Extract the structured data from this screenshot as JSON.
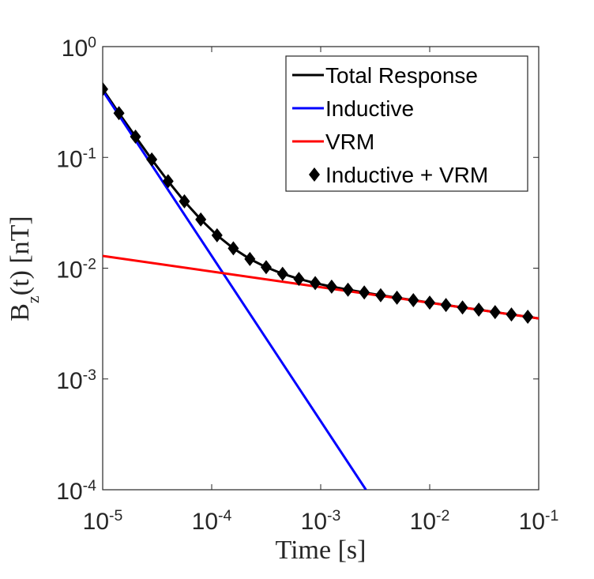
{
  "chart_data": {
    "type": "line",
    "xlabel": "Time [s]",
    "ylabel": "B_z(t) [nT]",
    "xscale": "log",
    "yscale": "log",
    "xlim": [
      1e-05,
      0.1
    ],
    "ylim": [
      0.0001,
      1
    ],
    "xticks": [
      {
        "value": 1e-05,
        "label": "10^-5"
      },
      {
        "value": 0.0001,
        "label": "10^-4"
      },
      {
        "value": 0.001,
        "label": "10^-3"
      },
      {
        "value": 0.01,
        "label": "10^-2"
      },
      {
        "value": 0.1,
        "label": "10^-1"
      }
    ],
    "yticks": [
      {
        "value": 0.0001,
        "label": "10^-4"
      },
      {
        "value": 0.001,
        "label": "10^-3"
      },
      {
        "value": 0.01,
        "label": "10^-2"
      },
      {
        "value": 0.1,
        "label": "10^-1"
      },
      {
        "value": 1,
        "label": "10^0"
      }
    ],
    "grid": false,
    "legend": "upper right",
    "series": [
      {
        "name": "Total Response",
        "color": "#000000",
        "style": "line",
        "x": [
          1e-05,
          1.41e-05,
          2e-05,
          2.82e-05,
          3.98e-05,
          5.62e-05,
          7.94e-05,
          0.000112,
          0.000158,
          0.000224,
          0.000316,
          0.000447,
          0.000631,
          0.000891,
          0.00126,
          0.00178,
          0.00251,
          0.00355,
          0.00501,
          0.00708,
          0.01,
          0.0141,
          0.02,
          0.0282,
          0.0398,
          0.0562,
          0.0794,
          0.1
        ],
        "values": [
          0.413,
          0.251,
          0.154,
          0.0957,
          0.061,
          0.0401,
          0.0275,
          0.0198,
          0.0151,
          0.0121,
          0.0102,
          0.0089,
          0.008,
          0.00733,
          0.00681,
          0.00639,
          0.00603,
          0.0057,
          0.00541,
          0.00514,
          0.00489,
          0.00465,
          0.00442,
          0.00422,
          0.00401,
          0.00382,
          0.00364,
          0.00352
        ]
      },
      {
        "name": "Inductive",
        "color": "#0000ff",
        "style": "line",
        "x": [
          1e-05,
          0.0026
        ],
        "values": [
          0.4,
          0.0001
        ]
      },
      {
        "name": "VRM",
        "color": "#ff0000",
        "style": "line",
        "x": [
          1e-05,
          0.1
        ],
        "values": [
          0.0129,
          0.00352
        ]
      },
      {
        "name": "Inductive + VRM",
        "color": "#000000",
        "style": "diamond",
        "x": [
          1e-05,
          1.41e-05,
          2e-05,
          2.82e-05,
          3.98e-05,
          5.62e-05,
          7.94e-05,
          0.000112,
          0.000158,
          0.000224,
          0.000316,
          0.000447,
          0.000631,
          0.000891,
          0.00126,
          0.00178,
          0.00251,
          0.00355,
          0.00501,
          0.00708,
          0.01,
          0.0141,
          0.02,
          0.0282,
          0.0398,
          0.0562,
          0.0794
        ],
        "values": [
          0.413,
          0.251,
          0.154,
          0.0957,
          0.061,
          0.0401,
          0.0275,
          0.0198,
          0.0151,
          0.0121,
          0.0102,
          0.0089,
          0.008,
          0.00733,
          0.00681,
          0.00639,
          0.00603,
          0.0057,
          0.00541,
          0.00514,
          0.00489,
          0.00465,
          0.00442,
          0.00422,
          0.00401,
          0.00382,
          0.00364
        ]
      }
    ]
  }
}
